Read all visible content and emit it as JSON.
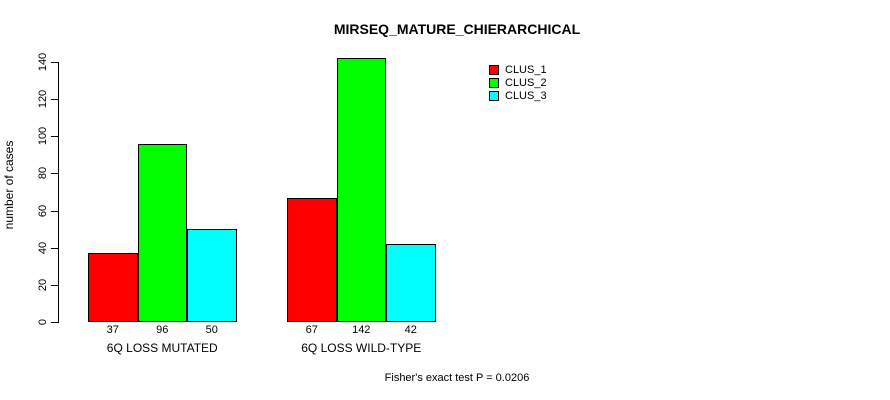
{
  "page": {
    "background": "#ffffff",
    "text_color": "#000000"
  },
  "chart_data": {
    "type": "bar",
    "title": "MIRSEQ_MATURE_CHIERARCHICAL",
    "xlabel": "",
    "ylabel": "number of cases",
    "categories": [
      "6Q LOSS MUTATED",
      "6Q LOSS WILD-TYPE"
    ],
    "series": [
      {
        "name": "CLUS_1",
        "color": "#ff0000",
        "values": [
          37,
          67
        ]
      },
      {
        "name": "CLUS_2",
        "color": "#00ff00",
        "values": [
          96,
          142
        ]
      },
      {
        "name": "CLUS_3",
        "color": "#00ffff",
        "values": [
          50,
          42
        ]
      }
    ],
    "yticks": [
      0,
      20,
      40,
      60,
      80,
      100,
      120,
      140
    ],
    "ylim": [
      0,
      140
    ],
    "grid": false,
    "legend_position": "top-right",
    "bar_border_color": "#000000",
    "value_labels_shown": true,
    "annotation": "Fisher's exact test P = 0.0206"
  }
}
